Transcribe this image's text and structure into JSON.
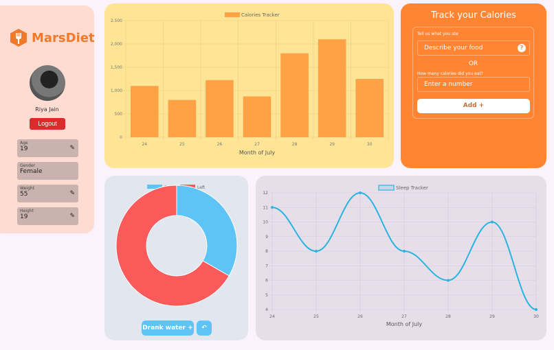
{
  "brand": {
    "name": "MarsDiet",
    "logo_icon": "fork-hexagon-icon"
  },
  "user": {
    "name": "Riya Jain",
    "logout_label": "Logout"
  },
  "profile_fields": [
    {
      "label": "Age",
      "value": "19",
      "editable": true
    },
    {
      "label": "Gender",
      "value": "Female",
      "editable": false
    },
    {
      "label": "Weight",
      "value": "55",
      "editable": true
    },
    {
      "label": "Height",
      "value": "19",
      "editable": true
    }
  ],
  "tracker": {
    "title": "Track your Calories",
    "food_label": "Tell us what you ate",
    "food_placeholder": "Describe your food",
    "help_icon": "?",
    "or_label": "OR",
    "calories_label": "How many calories did you eat?",
    "calories_placeholder": "Enter a number",
    "add_label": "Add +"
  },
  "water": {
    "drank_label": "Drank water +",
    "undo_icon": "undo-icon"
  },
  "colors": {
    "bar": "#ffa145",
    "drank": "#5ec3f5",
    "left": "#fb5a5a",
    "sleep_line": "#27b4e0"
  },
  "chart_data": [
    {
      "type": "bar",
      "legend": "Calories Tracker",
      "categories": [
        "24",
        "25",
        "26",
        "27",
        "28",
        "29",
        "30"
      ],
      "values": [
        1100,
        800,
        1225,
        875,
        1800,
        2100,
        1250
      ],
      "xlabel": "Month of July",
      "ylim": [
        0,
        2500
      ],
      "yticks": [
        "0",
        "500",
        "1,000",
        "1,500",
        "2,000",
        "2,500"
      ],
      "grid": true,
      "legend_position": "top"
    },
    {
      "type": "pie",
      "donut": true,
      "labels": [
        "Drank",
        "Left"
      ],
      "values": [
        1,
        2
      ],
      "legend_position": "top"
    },
    {
      "type": "line",
      "legend": "Sleep Tracker",
      "categories": [
        "24",
        "25",
        "26",
        "27",
        "28",
        "29",
        "30"
      ],
      "values": [
        11,
        8,
        12,
        8,
        6,
        10,
        4
      ],
      "xlabel": "Month of July",
      "ylim": [
        4,
        12
      ],
      "yticks": [
        "4",
        "5",
        "6",
        "7",
        "8",
        "9",
        "10",
        "11",
        "12"
      ],
      "grid": true,
      "legend_position": "top"
    }
  ]
}
